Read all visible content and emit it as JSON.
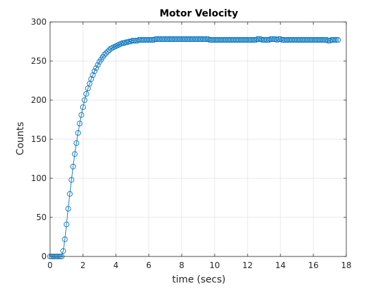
{
  "chart_data": {
    "type": "line",
    "title": "Motor Velocity",
    "xlabel": "time (secs)",
    "ylabel": "Counts",
    "xlim": [
      0,
      18
    ],
    "ylim": [
      0,
      300
    ],
    "xticks": [
      "0",
      "2",
      "4",
      "6",
      "8",
      "10",
      "12",
      "14",
      "16",
      "18"
    ],
    "yticks": [
      "0",
      "50",
      "100",
      "150",
      "200",
      "250",
      "300"
    ],
    "grid": true,
    "legend": "none",
    "marker": "circle",
    "series": [
      {
        "color": "#0072BD",
        "x": [
          0.0,
          0.1,
          0.2,
          0.3,
          0.4,
          0.5,
          0.6,
          0.7,
          0.8,
          0.9,
          1.0,
          1.1,
          1.2,
          1.3,
          1.4,
          1.5,
          1.6,
          1.7,
          1.8,
          1.9,
          2.0,
          2.1,
          2.2,
          2.3,
          2.4,
          2.5,
          2.6,
          2.7,
          2.8,
          2.9,
          3.0,
          3.1,
          3.2,
          3.3,
          3.4,
          3.5,
          3.6,
          3.7,
          3.8,
          3.9,
          4.0,
          4.1,
          4.2,
          4.3,
          4.4,
          4.5,
          4.6,
          4.7,
          4.8,
          4.9,
          5.0,
          5.1,
          5.2,
          5.3,
          5.4,
          5.5,
          5.6,
          5.7,
          5.8,
          5.9,
          6.0,
          6.1,
          6.2,
          6.3,
          6.4,
          6.5,
          6.6,
          6.7,
          6.8,
          6.9,
          7.0,
          7.1,
          7.2,
          7.3,
          7.4,
          7.5,
          7.6,
          7.7,
          7.8,
          7.9,
          8.0,
          8.1,
          8.2,
          8.3,
          8.4,
          8.5,
          8.6,
          8.7,
          8.8,
          8.9,
          9.0,
          9.1,
          9.2,
          9.3,
          9.4,
          9.5,
          9.6,
          9.7,
          9.8,
          9.9,
          10.0,
          10.1,
          10.2,
          10.3,
          10.4,
          10.5,
          10.6,
          10.7,
          10.8,
          10.9,
          11.0,
          11.1,
          11.2,
          11.3,
          11.4,
          11.5,
          11.6,
          11.7,
          11.8,
          11.9,
          12.0,
          12.1,
          12.2,
          12.3,
          12.4,
          12.5,
          12.6,
          12.7,
          12.8,
          12.9,
          13.0,
          13.1,
          13.2,
          13.3,
          13.4,
          13.5,
          13.6,
          13.7,
          13.8,
          13.9,
          14.0,
          14.1,
          14.2,
          14.3,
          14.4,
          14.5,
          14.6,
          14.7,
          14.8,
          14.9,
          15.0,
          15.1,
          15.2,
          15.3,
          15.4,
          15.5,
          15.6,
          15.7,
          15.8,
          15.9,
          16.0,
          16.1,
          16.2,
          16.3,
          16.4,
          16.5,
          16.6,
          16.7,
          16.8,
          16.9,
          17.0,
          17.1,
          17.2,
          17.3,
          17.4,
          17.5
        ],
        "y": [
          0,
          0,
          0,
          0,
          0,
          0,
          0,
          0,
          7,
          22,
          41,
          61,
          80,
          98,
          115,
          131,
          145,
          158,
          170,
          181,
          191,
          200,
          208,
          215,
          221,
          227,
          232,
          237,
          241,
          245,
          249,
          252,
          255,
          258,
          260,
          262,
          264,
          266,
          267,
          268,
          269,
          270,
          271,
          272,
          273,
          273,
          274,
          274,
          275,
          275,
          276,
          276,
          276,
          276,
          277,
          277,
          277,
          277,
          277,
          277,
          277,
          277,
          277,
          277,
          278,
          278,
          278,
          278,
          278,
          278,
          278,
          278,
          278,
          278,
          278,
          278,
          278,
          278,
          278,
          278,
          278,
          278,
          278,
          278,
          278,
          278,
          278,
          278,
          278,
          278,
          278,
          278,
          278,
          278,
          278,
          278,
          278,
          277,
          277,
          277,
          277,
          277,
          277,
          277,
          277,
          277,
          277,
          277,
          277,
          277,
          277,
          277,
          277,
          277,
          277,
          277,
          277,
          277,
          277,
          277,
          277,
          277,
          277,
          277,
          277,
          277,
          278,
          278,
          278,
          277,
          277,
          277,
          277,
          277,
          278,
          278,
          278,
          278,
          277,
          278,
          278,
          277,
          277,
          277,
          277,
          277,
          277,
          277,
          277,
          277,
          277,
          277,
          277,
          277,
          277,
          277,
          277,
          277,
          277,
          277,
          277,
          277,
          277,
          277,
          277,
          277,
          277,
          277,
          277,
          276,
          276,
          277,
          277,
          277,
          277,
          277
        ]
      }
    ]
  }
}
